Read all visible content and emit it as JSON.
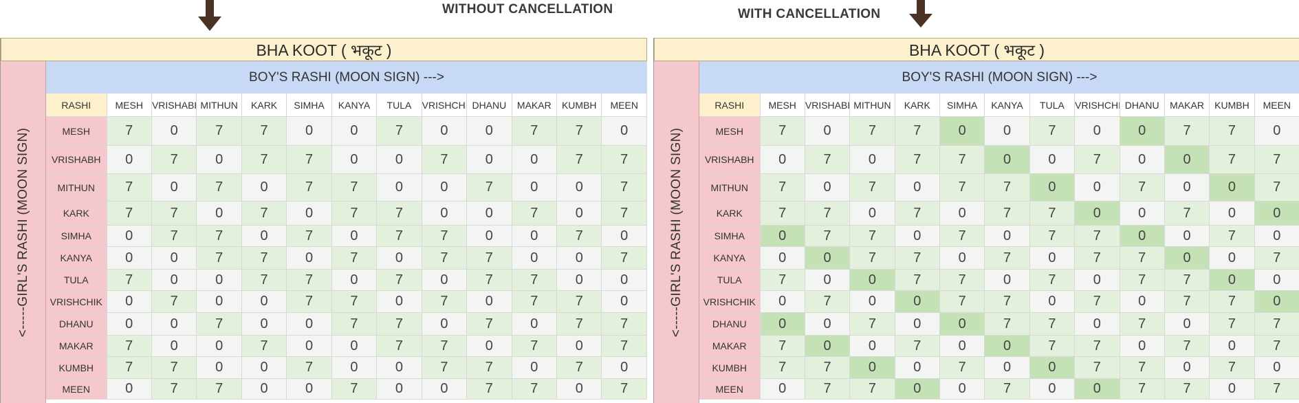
{
  "captions": {
    "left": "WITHOUT CANCELLATION",
    "right": "WITH CANCELLATION"
  },
  "icons": {
    "arrow": "down-arrow-icon"
  },
  "colors": {
    "title_bg": "#fdf0cc",
    "girl_label_bg": "#f4c8cc",
    "boy_header_bg": "#c7d9f4",
    "cell_7": "#e3f0dc",
    "cell_0": "#f3f5f2",
    "cell_0_cancelled": "#c5e2b6"
  },
  "table": {
    "title": "BHA KOOT ( भकूट )",
    "boys_header": "BOY'S RASHI (MOON SIGN) --->",
    "girls_label": "<-----GIRL'S RASHI (MOON SIGN)",
    "corner": "RASHI",
    "signs": [
      "MESH",
      "VRISHABH",
      "MITHUN",
      "KARK",
      "SIMHA",
      "KANYA",
      "TULA",
      "VRISHCHIK",
      "DHANU",
      "MAKAR",
      "KUMBH",
      "MEEN"
    ]
  },
  "left_panel": {
    "values": [
      [
        7,
        0,
        7,
        7,
        0,
        0,
        7,
        0,
        0,
        7,
        7,
        0
      ],
      [
        0,
        7,
        0,
        7,
        7,
        0,
        0,
        7,
        0,
        0,
        7,
        7
      ],
      [
        7,
        0,
        7,
        0,
        7,
        7,
        0,
        0,
        7,
        0,
        0,
        7
      ],
      [
        7,
        7,
        0,
        7,
        0,
        7,
        7,
        0,
        0,
        7,
        0,
        7
      ],
      [
        0,
        7,
        7,
        0,
        7,
        0,
        7,
        7,
        0,
        0,
        7,
        0
      ],
      [
        0,
        0,
        7,
        7,
        0,
        7,
        0,
        7,
        7,
        0,
        0,
        7
      ],
      [
        7,
        0,
        0,
        7,
        7,
        0,
        7,
        0,
        7,
        7,
        0,
        0
      ],
      [
        0,
        7,
        0,
        0,
        7,
        7,
        0,
        7,
        0,
        7,
        7,
        0
      ],
      [
        0,
        0,
        7,
        0,
        0,
        7,
        7,
        0,
        7,
        0,
        7,
        7
      ],
      [
        7,
        0,
        0,
        7,
        0,
        0,
        7,
        7,
        0,
        7,
        0,
        7
      ],
      [
        7,
        7,
        0,
        0,
        7,
        0,
        0,
        7,
        7,
        0,
        7,
        0
      ],
      [
        0,
        7,
        7,
        0,
        0,
        7,
        0,
        0,
        7,
        7,
        0,
        7
      ]
    ]
  },
  "right_panel": {
    "values": [
      [
        7,
        0,
        7,
        7,
        0,
        0,
        7,
        0,
        0,
        7,
        7,
        0
      ],
      [
        0,
        7,
        0,
        7,
        7,
        0,
        0,
        7,
        0,
        0,
        7,
        7
      ],
      [
        7,
        0,
        7,
        0,
        7,
        7,
        0,
        0,
        7,
        0,
        0,
        7
      ],
      [
        7,
        7,
        0,
        7,
        0,
        7,
        7,
        0,
        0,
        7,
        0,
        0
      ],
      [
        0,
        7,
        7,
        0,
        7,
        0,
        7,
        7,
        0,
        0,
        7,
        0
      ],
      [
        0,
        0,
        7,
        7,
        0,
        7,
        0,
        7,
        7,
        0,
        0,
        7
      ],
      [
        7,
        0,
        0,
        7,
        7,
        0,
        7,
        0,
        7,
        7,
        0,
        0
      ],
      [
        0,
        7,
        0,
        0,
        7,
        7,
        0,
        7,
        0,
        7,
        7,
        0
      ],
      [
        0,
        0,
        7,
        0,
        0,
        7,
        7,
        0,
        7,
        0,
        7,
        7
      ],
      [
        7,
        0,
        0,
        7,
        0,
        0,
        7,
        7,
        0,
        7,
        0,
        7
      ],
      [
        7,
        7,
        0,
        0,
        7,
        0,
        0,
        7,
        7,
        0,
        7,
        0
      ],
      [
        0,
        7,
        7,
        0,
        0,
        7,
        0,
        0,
        7,
        7,
        0,
        7
      ]
    ]
  }
}
